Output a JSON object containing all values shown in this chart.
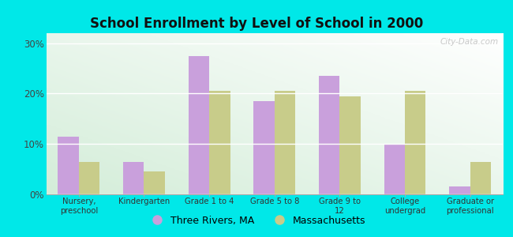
{
  "title": "School Enrollment by Level of School in 2000",
  "categories": [
    "Nursery,\npreschool",
    "Kindergarten",
    "Grade 1 to 4",
    "Grade 5 to 8",
    "Grade 9 to\n12",
    "College\nundergrad",
    "Graduate or\nprofessional"
  ],
  "three_rivers": [
    11.5,
    6.5,
    27.5,
    18.5,
    23.5,
    10.0,
    1.5
  ],
  "massachusetts": [
    6.5,
    4.5,
    20.5,
    20.5,
    19.5,
    20.5,
    6.5
  ],
  "color_three_rivers": "#c9a0dc",
  "color_massachusetts": "#c8cc8a",
  "background_outer": "#00e8e8",
  "ylim": [
    0,
    32
  ],
  "yticks": [
    0,
    10,
    20,
    30
  ],
  "ytick_labels": [
    "0%",
    "10%",
    "20%",
    "30%"
  ],
  "legend_label_tr": "Three Rivers, MA",
  "legend_label_ma": "Massachusetts",
  "watermark": "City-Data.com",
  "bar_width": 0.32
}
